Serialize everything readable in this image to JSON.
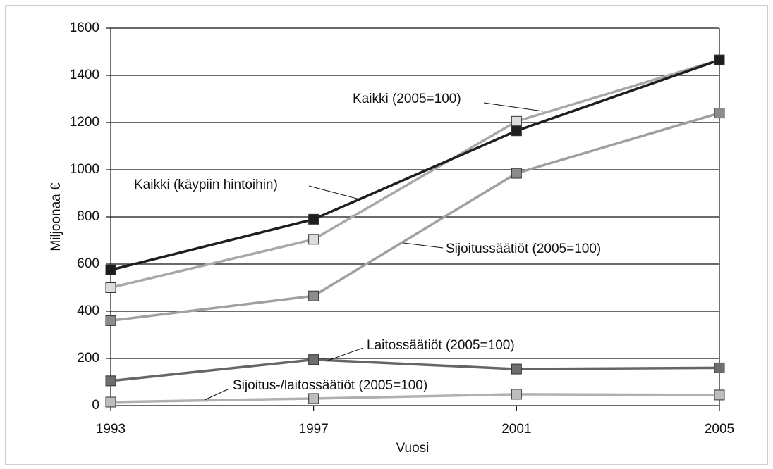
{
  "chart_data": {
    "type": "line",
    "x_label": "Vuosi",
    "y_label": "Miljoonaa €",
    "x": [
      1993,
      1997,
      2001,
      2005
    ],
    "xlim": [
      1993,
      2005
    ],
    "xticks": [
      1993,
      1997,
      2001,
      2005
    ],
    "ylim": [
      0,
      1600
    ],
    "yticks": [
      0,
      200,
      400,
      600,
      800,
      1000,
      1200,
      1400,
      1600
    ],
    "grid": true,
    "series": [
      {
        "name": "Kaikki (2005=100)",
        "color": "#a8a8a8",
        "marker_color": "#dcdcdc",
        "values": [
          500,
          705,
          1205,
          1465
        ]
      },
      {
        "name": "Kaikki (käypiin hintoihin)",
        "color": "#1e1e1e",
        "marker_color": "#1e1e1e",
        "values": [
          575,
          790,
          1165,
          1465
        ]
      },
      {
        "name": "Sijoitussäätiöt (2005=100)",
        "color": "#a0a0a0",
        "marker_color": "#8c8c8c",
        "values": [
          360,
          465,
          985,
          1240
        ]
      },
      {
        "name": "Laitossäätiöt (2005=100)",
        "color": "#666666",
        "marker_color": "#6e6e6e",
        "values": [
          105,
          195,
          155,
          160
        ]
      },
      {
        "name": "Sijoitus-/laitossäätiöt (2005=100)",
        "color": "#b0b0b0",
        "marker_color": "#bdbdbd",
        "values": [
          15,
          30,
          48,
          45
        ]
      }
    ]
  }
}
